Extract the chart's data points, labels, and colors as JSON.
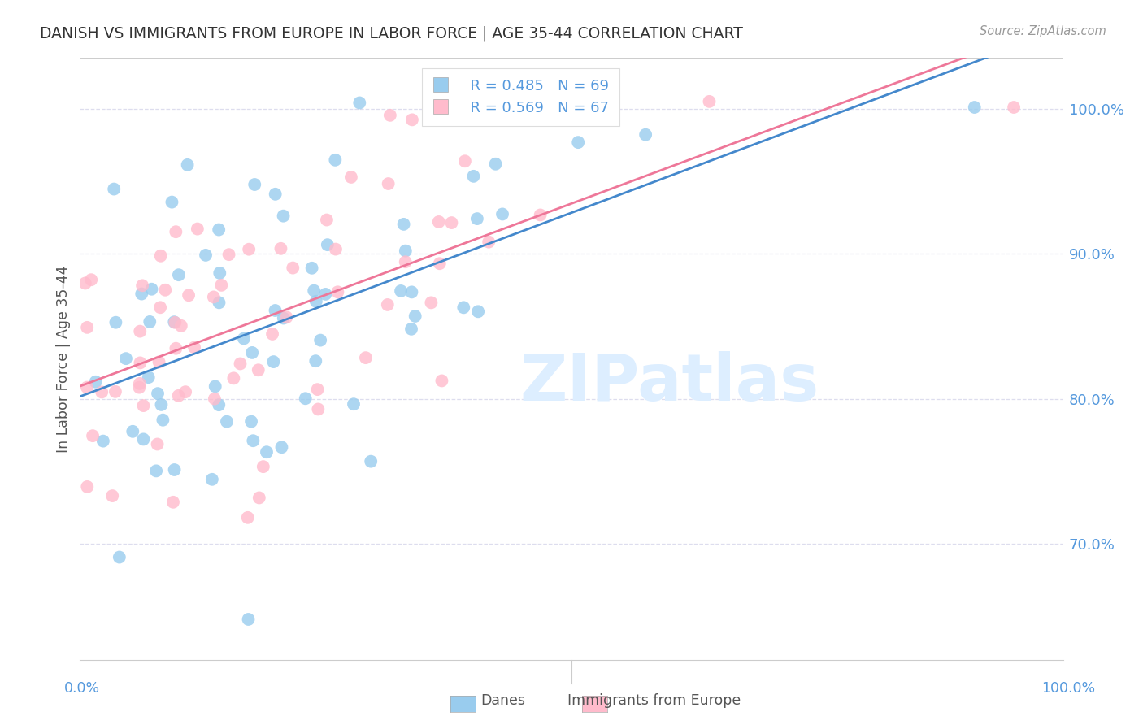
{
  "title": "DANISH VS IMMIGRANTS FROM EUROPE IN LABOR FORCE | AGE 35-44 CORRELATION CHART",
  "source": "Source: ZipAtlas.com",
  "ylabel": "In Labor Force | Age 35-44",
  "ytick_values": [
    0.7,
    0.8,
    0.9,
    1.0
  ],
  "ytick_labels": [
    "70.0%",
    "80.0%",
    "90.0%",
    "100.0%"
  ],
  "xlim": [
    0.0,
    1.0
  ],
  "ylim": [
    0.62,
    1.035
  ],
  "danes_color": "#99ccee",
  "immigrants_color": "#ffbbcc",
  "danes_line_color": "#4488cc",
  "immigrants_line_color": "#ee7799",
  "legend_R_danes": "R = 0.485",
  "legend_N_danes": "N = 69",
  "legend_R_immigrants": "R = 0.569",
  "legend_N_immigrants": "N = 67",
  "background_color": "#ffffff",
  "grid_color": "#ddddee",
  "title_color": "#333333",
  "axis_label_color": "#5599dd",
  "watermark_text": "ZIPatlas",
  "watermark_color": "#ddeeff",
  "legend_label_danes": "Danes",
  "legend_label_immigrants": "Immigrants from Europe"
}
